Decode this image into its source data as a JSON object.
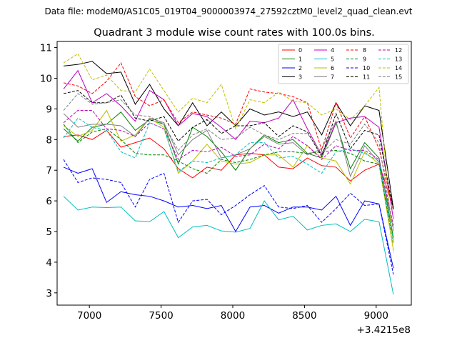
{
  "chart_data": {
    "type": "line",
    "suptitle": "Data file: modeM0/AS1C05_019T04_9000003974_27592cztM0_level2_quad_clean.evt",
    "title": "Quadrant 3 module wise count rates with 100.0s bins.",
    "xlabel": "",
    "ylabel": "",
    "x_offset_label": "+3.4215e8",
    "xlim": [
      6775,
      9245
    ],
    "ylim": [
      2.6,
      11.2
    ],
    "x_ticks": [
      7000,
      7500,
      8000,
      8500,
      9000
    ],
    "y_ticks": [
      3,
      4,
      5,
      6,
      7,
      8,
      9,
      10,
      11
    ],
    "x": [
      6820,
      6920,
      7020,
      7120,
      7220,
      7320,
      7420,
      7520,
      7620,
      7720,
      7820,
      7920,
      8020,
      8120,
      8220,
      8320,
      8420,
      8520,
      8620,
      8720,
      8820,
      8920,
      9020,
      9120
    ],
    "legend_position": "upper right",
    "series": [
      {
        "name": "0",
        "color": "#ff0000",
        "dash": "solid",
        "values": [
          8.1,
          8.15,
          8.0,
          8.3,
          7.75,
          7.9,
          8.05,
          7.7,
          7.05,
          6.75,
          7.1,
          7.0,
          7.5,
          7.55,
          7.5,
          7.1,
          7.05,
          7.4,
          7.15,
          7.1,
          6.65,
          7.0,
          7.2,
          5.8
        ]
      },
      {
        "name": "1",
        "color": "#008000",
        "dash": "solid",
        "values": [
          8.35,
          7.95,
          8.4,
          8.5,
          8.9,
          8.3,
          8.65,
          8.5,
          7.2,
          8.4,
          8.1,
          7.6,
          7.0,
          7.7,
          8.15,
          7.9,
          8.0,
          7.55,
          7.4,
          8.55,
          7.05,
          7.9,
          7.4,
          4.8
        ]
      },
      {
        "name": "2",
        "color": "#0000ff",
        "dash": "solid",
        "values": [
          7.1,
          6.9,
          7.05,
          5.95,
          6.3,
          6.2,
          6.15,
          6.0,
          5.8,
          5.85,
          5.75,
          5.85,
          5.0,
          5.8,
          5.85,
          5.6,
          5.8,
          5.8,
          5.7,
          6.15,
          5.2,
          6.0,
          5.9,
          3.8
        ]
      },
      {
        "name": "3",
        "color": "#000000",
        "dash": "solid",
        "values": [
          10.4,
          10.45,
          10.55,
          10.15,
          10.2,
          9.15,
          9.8,
          9.0,
          8.45,
          9.2,
          8.45,
          8.9,
          8.45,
          9.0,
          8.8,
          8.9,
          8.75,
          8.9,
          8.15,
          9.2,
          8.45,
          9.1,
          8.95,
          5.75
        ]
      },
      {
        "name": "4",
        "color": "#bf00bf",
        "dash": "solid",
        "values": [
          9.65,
          10.25,
          9.2,
          9.5,
          9.1,
          8.6,
          9.6,
          9.3,
          8.45,
          8.85,
          8.75,
          8.4,
          8.0,
          8.6,
          8.55,
          8.7,
          9.3,
          8.35,
          7.5,
          8.55,
          8.7,
          8.75,
          8.4,
          5.4
        ]
      },
      {
        "name": "5",
        "color": "#00bfbf",
        "dash": "solid",
        "values": [
          6.15,
          5.7,
          5.8,
          5.78,
          5.8,
          5.35,
          5.32,
          5.65,
          4.8,
          5.15,
          5.2,
          5.02,
          4.98,
          5.1,
          6.0,
          5.38,
          5.5,
          5.05,
          5.2,
          5.25,
          5.0,
          5.4,
          5.32,
          2.95
        ]
      },
      {
        "name": "6",
        "color": "#bfbf00",
        "dash": "solid",
        "values": [
          8.45,
          8.1,
          8.3,
          8.95,
          7.95,
          8.15,
          8.7,
          8.4,
          6.9,
          7.3,
          7.85,
          7.3,
          7.2,
          7.25,
          7.5,
          7.5,
          7.1,
          7.8,
          7.4,
          7.3,
          6.55,
          7.6,
          7.2,
          4.4
        ]
      },
      {
        "name": "7",
        "color": "#808080",
        "dash": "solid",
        "values": [
          8.85,
          8.4,
          8.5,
          8.5,
          8.45,
          8.1,
          8.7,
          8.55,
          7.5,
          8.0,
          8.3,
          7.4,
          7.5,
          7.7,
          8.1,
          7.85,
          7.9,
          7.5,
          7.7,
          8.6,
          6.8,
          7.8,
          7.25,
          5.1
        ]
      },
      {
        "name": "8",
        "color": "#ff0000",
        "dash": "dashed",
        "values": [
          9.85,
          9.75,
          9.5,
          9.9,
          10.5,
          9.4,
          9.1,
          9.3,
          8.55,
          8.9,
          8.8,
          8.7,
          8.5,
          9.65,
          9.55,
          9.5,
          9.4,
          9.2,
          7.65,
          9.2,
          8.05,
          8.75,
          7.7,
          5.7
        ]
      },
      {
        "name": "9",
        "color": "#008000",
        "dash": "dashed",
        "values": [
          8.5,
          7.9,
          8.25,
          8.35,
          8.0,
          7.55,
          7.5,
          7.5,
          7.3,
          7.05,
          6.9,
          7.35,
          7.25,
          7.35,
          7.5,
          7.6,
          7.6,
          7.55,
          7.6,
          7.65,
          7.55,
          7.3,
          7.2,
          4.6
        ]
      },
      {
        "name": "10",
        "color": "#0000ff",
        "dash": "dashed",
        "values": [
          7.35,
          6.6,
          6.75,
          6.7,
          6.6,
          5.8,
          6.7,
          6.9,
          5.3,
          6.0,
          6.05,
          5.55,
          5.85,
          6.2,
          6.5,
          5.8,
          5.75,
          5.85,
          5.3,
          5.75,
          6.25,
          5.85,
          5.9,
          3.6
        ]
      },
      {
        "name": "11",
        "color": "#000000",
        "dash": "dashed",
        "values": [
          9.5,
          9.6,
          9.2,
          9.2,
          9.45,
          8.7,
          8.6,
          8.75,
          7.95,
          8.4,
          8.65,
          8.2,
          8.45,
          8.45,
          8.55,
          8.1,
          8.45,
          8.25,
          7.45,
          8.85,
          7.7,
          8.3,
          8.15,
          5.7
        ]
      },
      {
        "name": "12",
        "color": "#bf00bf",
        "dash": "dashed",
        "values": [
          8.55,
          8.95,
          8.95,
          8.35,
          8.3,
          8.1,
          8.55,
          8.35,
          7.35,
          7.65,
          7.6,
          7.75,
          7.45,
          7.5,
          7.85,
          7.7,
          8.1,
          7.8,
          7.35,
          7.8,
          7.65,
          7.65,
          7.35,
          5.2
        ]
      },
      {
        "name": "13",
        "color": "#00bfbf",
        "dash": "dashed",
        "values": [
          8.05,
          8.7,
          8.4,
          8.3,
          7.6,
          7.4,
          8.55,
          8.35,
          6.95,
          7.3,
          7.25,
          7.4,
          7.5,
          7.9,
          7.9,
          7.4,
          7.45,
          7.2,
          6.9,
          7.6,
          7.7,
          7.55,
          7.3,
          4.7
        ]
      },
      {
        "name": "14",
        "color": "#bfbf00",
        "dash": "dashed",
        "values": [
          10.5,
          10.8,
          9.95,
          10.1,
          9.6,
          9.55,
          10.3,
          9.6,
          8.9,
          9.35,
          9.2,
          9.8,
          8.35,
          9.3,
          9.2,
          9.55,
          9.25,
          9.2,
          8.8,
          9.0,
          8.65,
          9.1,
          9.7,
          4.3
        ]
      },
      {
        "name": "15",
        "color": "#808080",
        "dash": "dashed",
        "values": [
          8.95,
          9.5,
          9.15,
          9.2,
          9.3,
          8.8,
          8.75,
          8.5,
          7.65,
          8.15,
          8.35,
          8.0,
          8.05,
          8.4,
          8.15,
          8.0,
          8.2,
          8.2,
          7.55,
          8.0,
          7.85,
          8.5,
          7.9,
          5.0
        ]
      }
    ]
  }
}
